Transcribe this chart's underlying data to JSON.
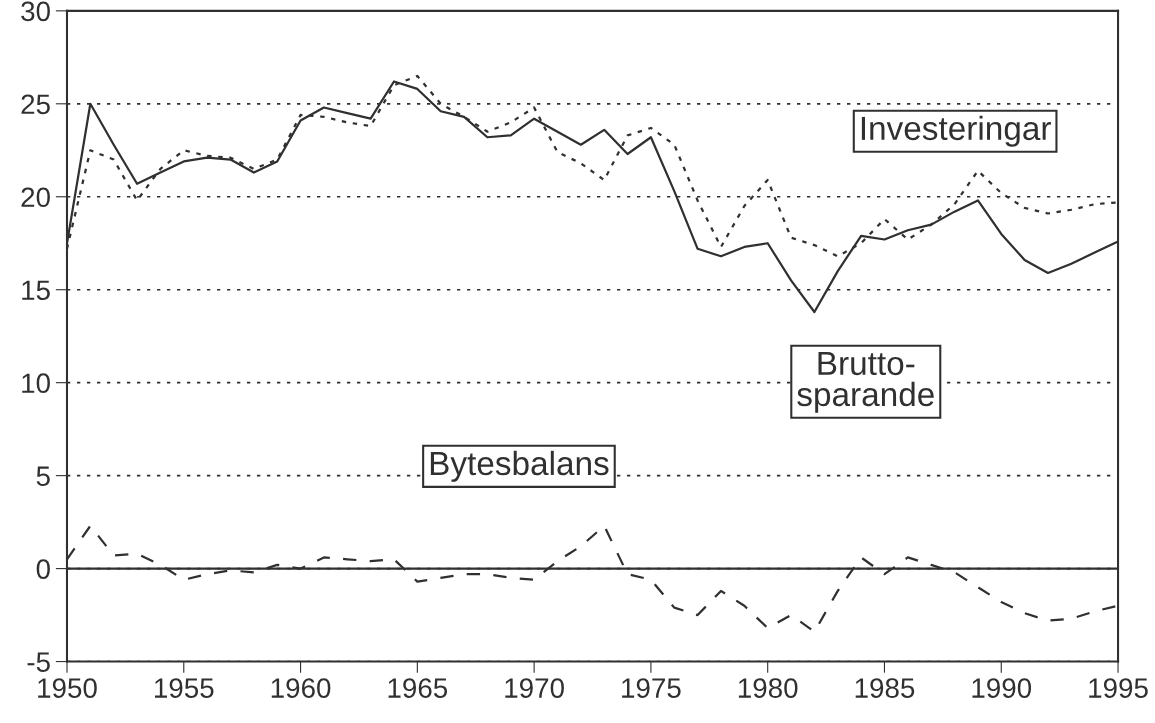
{
  "chart_data": {
    "type": "line",
    "x": [
      1950,
      1951,
      1952,
      1953,
      1954,
      1955,
      1956,
      1957,
      1958,
      1959,
      1960,
      1961,
      1962,
      1963,
      1964,
      1965,
      1966,
      1967,
      1968,
      1969,
      1970,
      1971,
      1972,
      1973,
      1974,
      1975,
      1976,
      1977,
      1978,
      1979,
      1980,
      1981,
      1982,
      1983,
      1984,
      1985,
      1986,
      1987,
      1988,
      1989,
      1990,
      1991,
      1992,
      1993,
      1994,
      1995
    ],
    "series": [
      {
        "name": "Investeringar",
        "color": "#303030",
        "line_style": "dotted",
        "values": [
          17.2,
          22.5,
          22.0,
          19.8,
          21.5,
          22.5,
          22.2,
          22.1,
          21.5,
          22.0,
          24.4,
          24.3,
          24.0,
          23.8,
          26.0,
          26.5,
          25.0,
          24.3,
          23.5,
          24.0,
          24.8,
          22.4,
          21.8,
          20.9,
          23.3,
          23.7,
          22.8,
          19.8,
          17.3,
          19.5,
          20.9,
          17.8,
          17.4,
          16.8,
          17.5,
          18.8,
          17.7,
          18.5,
          19.6,
          21.4,
          20.2,
          19.4,
          19.1,
          19.3,
          19.6,
          19.7
        ]
      },
      {
        "name": "Brutto-\nsparande",
        "color": "#303030",
        "line_style": "solid",
        "values": [
          17.5,
          25.0,
          22.8,
          20.7,
          21.3,
          21.9,
          22.1,
          22.0,
          21.3,
          21.9,
          24.1,
          24.8,
          24.5,
          24.2,
          26.2,
          25.8,
          24.6,
          24.3,
          23.2,
          23.3,
          24.2,
          23.5,
          22.8,
          23.6,
          22.3,
          23.2,
          20.3,
          17.2,
          16.8,
          17.3,
          17.5,
          15.5,
          13.8,
          16.0,
          17.9,
          17.7,
          18.2,
          18.5,
          19.2,
          19.8,
          18.0,
          16.6,
          15.9,
          16.4,
          17.0,
          17.6
        ]
      },
      {
        "name": "Bytesbalans",
        "color": "#303030",
        "line_style": "dashed",
        "values": [
          0.5,
          2.3,
          0.7,
          0.8,
          0.2,
          -0.6,
          -0.3,
          -0.1,
          -0.2,
          0.2,
          0.0,
          0.6,
          0.5,
          0.4,
          0.5,
          -0.7,
          -0.5,
          -0.3,
          -0.3,
          -0.5,
          -0.6,
          0.4,
          1.2,
          2.3,
          -0.3,
          -0.6,
          -2.1,
          -2.5,
          -1.2,
          -2.0,
          -3.2,
          -2.5,
          -3.4,
          -1.2,
          0.6,
          -0.3,
          0.6,
          0.2,
          -0.2,
          -1.0,
          -1.8,
          -2.4,
          -2.8,
          -2.7,
          -2.3,
          -2.0
        ]
      }
    ],
    "xlim": [
      1950,
      1995
    ],
    "xticks": [
      1950,
      1955,
      1960,
      1965,
      1970,
      1975,
      1980,
      1985,
      1990,
      1995
    ],
    "ylim": [
      -5,
      30
    ],
    "yticks": [
      -5,
      0,
      5,
      10,
      15,
      20,
      25,
      30
    ],
    "ref_lines": [
      {
        "axis": "y",
        "value": 0,
        "color": "#303030",
        "line_style": "solid"
      }
    ],
    "grid": "y",
    "marker": "none"
  }
}
